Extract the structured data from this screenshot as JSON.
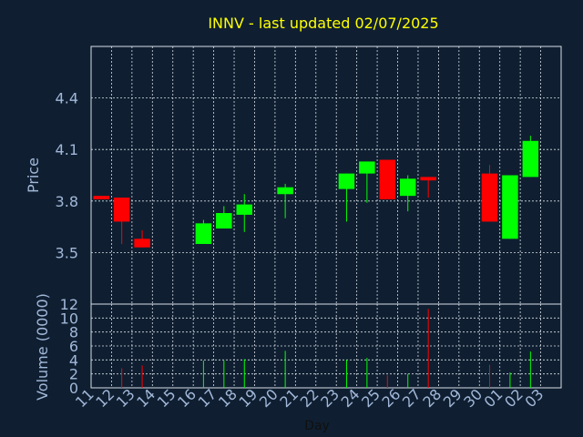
{
  "title": "INNV - last updated 02/07/2025",
  "colors": {
    "background": "#0f1f31",
    "title": "#ffff00",
    "axis_text": "#a2b8d9",
    "grid": "#d8dde6",
    "up": "#00ff00",
    "down": "#ff0000"
  },
  "chart_data": [
    {
      "type": "candlestick",
      "title": "INNV - last updated 02/07/2025",
      "ylabel": "Price",
      "ylim": [
        3.2,
        4.7
      ],
      "yticks": [
        "3.5",
        "3.8",
        "4.1",
        "4.4"
      ],
      "grid": true,
      "candles": [
        {
          "day": "11",
          "open": 3.83,
          "close": 3.81,
          "high": 3.83,
          "low": 3.81
        },
        {
          "day": "12",
          "open": 3.82,
          "close": 3.68,
          "high": 3.82,
          "low": 3.55
        },
        {
          "day": "13",
          "open": 3.58,
          "close": 3.53,
          "high": 3.63,
          "low": 3.53
        },
        {
          "day": "16",
          "open": 3.55,
          "close": 3.67,
          "high": 3.69,
          "low": 3.55
        },
        {
          "day": "17",
          "open": 3.64,
          "close": 3.73,
          "high": 3.77,
          "low": 3.64
        },
        {
          "day": "18",
          "open": 3.72,
          "close": 3.78,
          "high": 3.84,
          "low": 3.62
        },
        {
          "day": "20",
          "open": 3.84,
          "close": 3.88,
          "high": 3.9,
          "low": 3.7
        },
        {
          "day": "23",
          "open": 3.87,
          "close": 3.96,
          "high": 3.96,
          "low": 3.68
        },
        {
          "day": "24",
          "open": 3.96,
          "close": 4.03,
          "high": 4.03,
          "low": 3.79
        },
        {
          "day": "25",
          "open": 4.04,
          "close": 3.81,
          "high": 4.04,
          "low": 3.81
        },
        {
          "day": "26",
          "open": 3.83,
          "close": 3.93,
          "high": 3.95,
          "low": 3.74
        },
        {
          "day": "27",
          "open": 3.94,
          "close": 3.92,
          "high": 3.94,
          "low": 3.82
        },
        {
          "day": "30",
          "open": 3.96,
          "close": 3.68,
          "high": 4.01,
          "low": 3.68
        },
        {
          "day": "01",
          "open": 3.58,
          "close": 3.95,
          "high": 3.95,
          "low": 3.58
        },
        {
          "day": "02",
          "open": 3.94,
          "close": 4.15,
          "high": 4.18,
          "low": 3.94
        }
      ]
    },
    {
      "type": "bar",
      "ylabel": "Volume (0000)",
      "xlabel": "Day",
      "ylim": [
        0,
        12
      ],
      "yticks": [
        "0",
        "2",
        "4",
        "6",
        "8",
        "10",
        "12"
      ],
      "xticks": [
        "11",
        "12",
        "13",
        "14",
        "15",
        "16",
        "17",
        "18",
        "19",
        "20",
        "21",
        "22",
        "23",
        "24",
        "25",
        "26",
        "27",
        "28",
        "29",
        "30",
        "01",
        "02",
        "03"
      ],
      "grid": true,
      "bars": [
        {
          "day": "12",
          "value": 2.8,
          "direction": "down"
        },
        {
          "day": "13",
          "value": 3.2,
          "direction": "down"
        },
        {
          "day": "16",
          "value": 3.9,
          "direction": "up"
        },
        {
          "day": "17",
          "value": 3.9,
          "direction": "up"
        },
        {
          "day": "18",
          "value": 4.1,
          "direction": "up"
        },
        {
          "day": "20",
          "value": 5.3,
          "direction": "up"
        },
        {
          "day": "23",
          "value": 4.0,
          "direction": "up"
        },
        {
          "day": "24",
          "value": 4.3,
          "direction": "up"
        },
        {
          "day": "25",
          "value": 1.8,
          "direction": "down"
        },
        {
          "day": "26",
          "value": 2.0,
          "direction": "up"
        },
        {
          "day": "27",
          "value": 11.3,
          "direction": "down"
        },
        {
          "day": "30",
          "value": 3.3,
          "direction": "down"
        },
        {
          "day": "01",
          "value": 2.2,
          "direction": "up"
        },
        {
          "day": "02",
          "value": 5.2,
          "direction": "up"
        }
      ]
    }
  ]
}
